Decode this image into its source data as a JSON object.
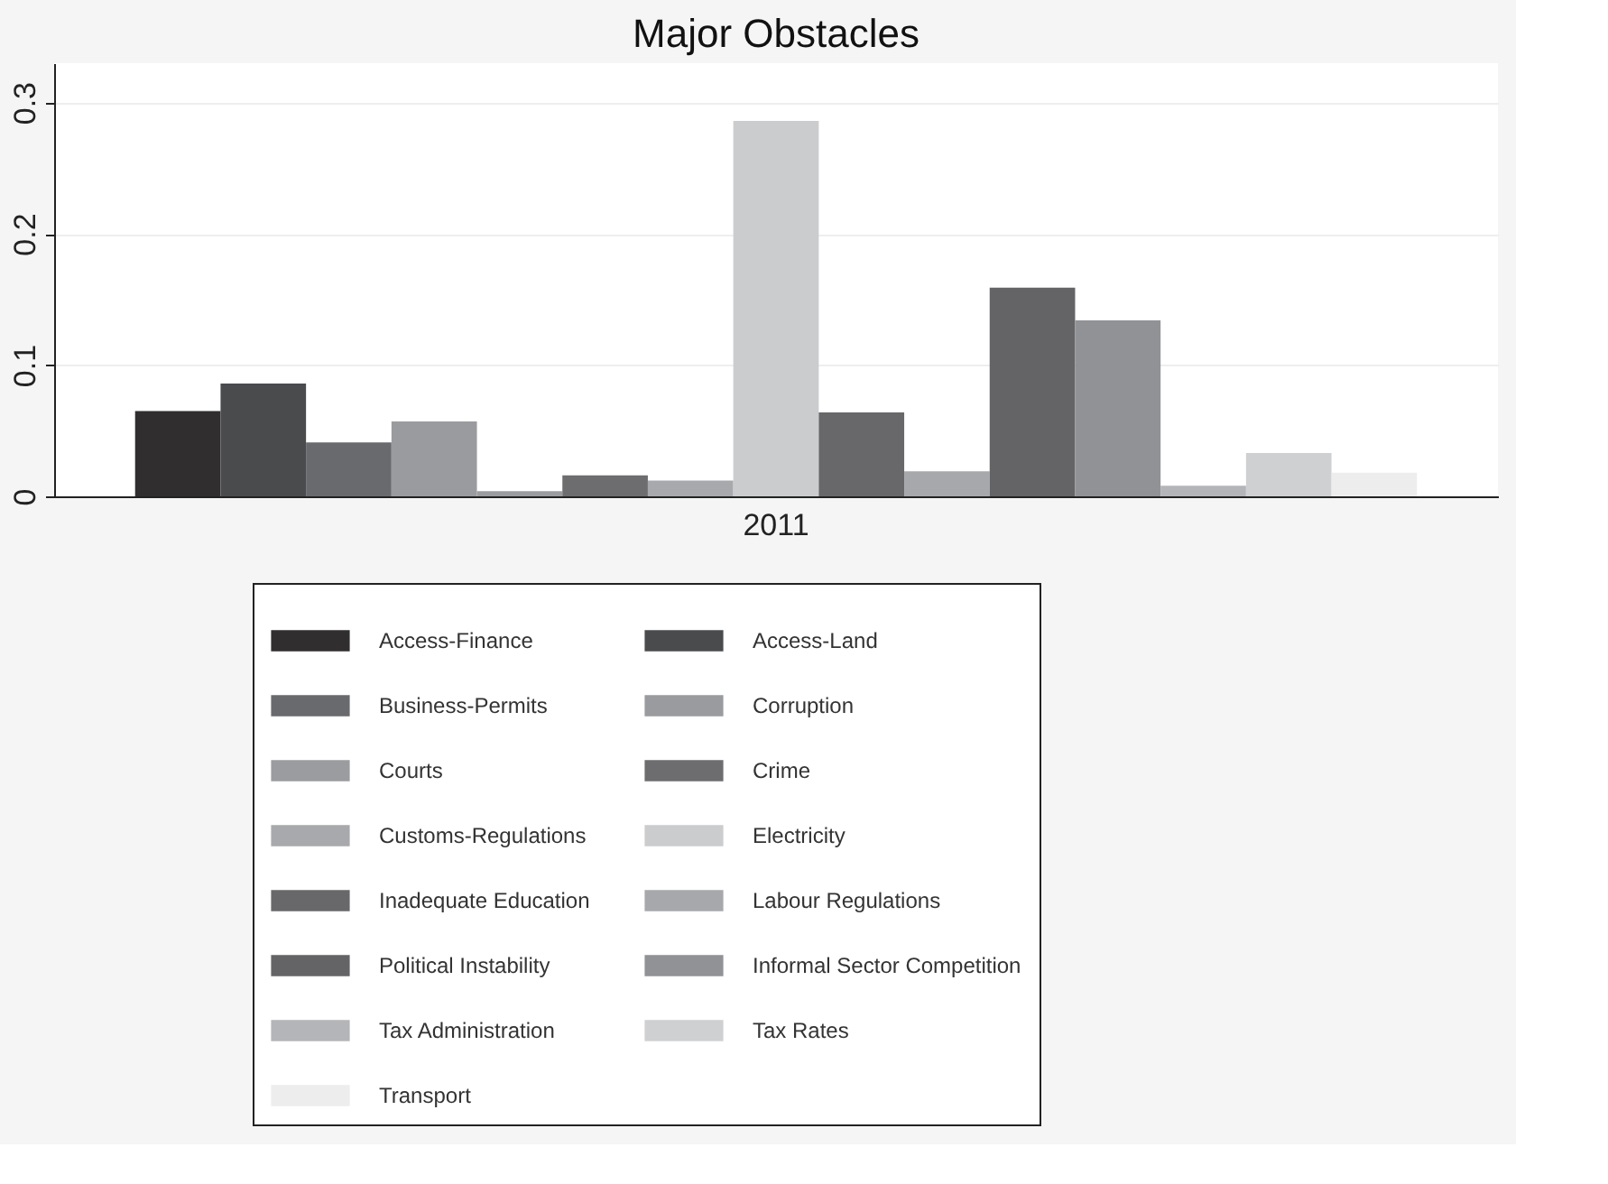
{
  "chart_data": {
    "type": "bar",
    "title": "Major Obstacles",
    "categories": [
      "2011"
    ],
    "series": [
      {
        "name": "Access-Finance",
        "color": "#302e2f",
        "values": [
          0.065
        ]
      },
      {
        "name": "Access-Land",
        "color": "#4a4b4d",
        "values": [
          0.086
        ]
      },
      {
        "name": "Business-Permits",
        "color": "#696a6e",
        "values": [
          0.041
        ]
      },
      {
        "name": "Corruption",
        "color": "#9a9b9e",
        "values": [
          0.057
        ]
      },
      {
        "name": "Courts",
        "color": "#9b9c9f",
        "values": [
          0.004
        ]
      },
      {
        "name": "Crime",
        "color": "#6d6d6f",
        "values": [
          0.016
        ]
      },
      {
        "name": "Customs-Regulations",
        "color": "#a8a9ac",
        "values": [
          0.012
        ]
      },
      {
        "name": "Electricity",
        "color": "#cbccce",
        "values": [
          0.286
        ]
      },
      {
        "name": "Inadequate Education",
        "color": "#68686a",
        "values": [
          0.064
        ]
      },
      {
        "name": "Labour Regulations",
        "color": "#a7a8ab",
        "values": [
          0.019
        ]
      },
      {
        "name": "Political Instability",
        "color": "#646466",
        "values": [
          0.159
        ]
      },
      {
        "name": "Informal Sector Competition",
        "color": "#919295",
        "values": [
          0.134
        ]
      },
      {
        "name": "Tax Administration",
        "color": "#b4b5b8",
        "values": [
          0.008
        ]
      },
      {
        "name": "Tax Rates",
        "color": "#cfd0d2",
        "values": [
          0.033
        ]
      },
      {
        "name": "Transport",
        "color": "#ededed",
        "values": [
          0.018
        ]
      }
    ],
    "ylim": [
      0,
      0.33
    ],
    "yticks": [
      0,
      0.1,
      0.2,
      0.3
    ],
    "grid": "y",
    "legend": "bottom"
  }
}
